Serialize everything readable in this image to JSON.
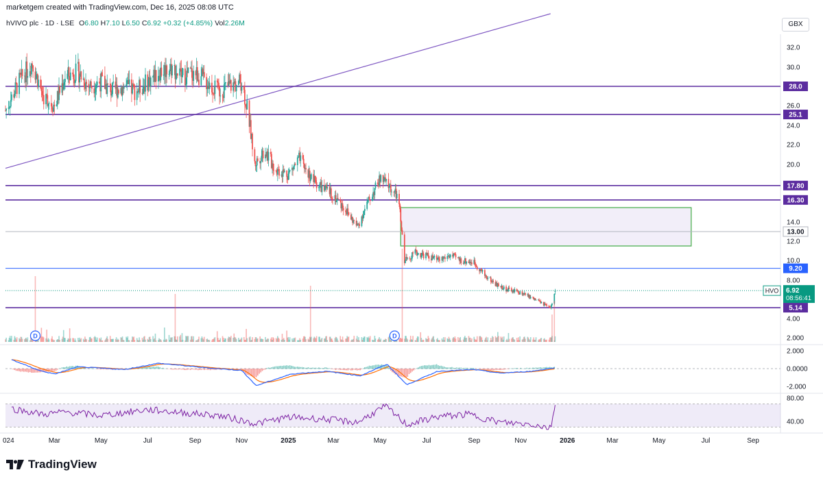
{
  "header": {
    "credit": "marketgem created with TradingView.com, Dec 16, 2025 08:08 UTC",
    "currency": "GBX"
  },
  "legend": {
    "symbol": "hVIVO plc · 1D · LSE",
    "open_label": "O",
    "open": "6.80",
    "high_label": "H",
    "high": "7.10",
    "low_label": "L",
    "low": "6.50",
    "close_label": "C",
    "close": "6.92",
    "change": "+0.32 (+4.85%)",
    "vol_label": "Vol",
    "volume": "2.26M"
  },
  "price_tag": {
    "ticker": "HVO",
    "price": "6.92",
    "countdown": "08:56:41"
  },
  "brand": {
    "name": "TradingView"
  },
  "colors": {
    "up": "#26a69a",
    "down": "#ef5350",
    "purple_line": "#5b2c9f",
    "blue_line": "#2962ff",
    "trendline": "#7e57c2",
    "box_border": "#4caf50",
    "box_fill": "#ede7f6",
    "rsi": "#7b1fa2",
    "macd": "#2962ff",
    "signal": "#ff6d00",
    "price_tag": "#089981"
  },
  "chart_data": [
    {
      "type": "candlestick",
      "title": "hVIVO plc · 1D · LSE",
      "ylabel": "GBX",
      "ylim": [
        1.8,
        33
      ],
      "y_ticks": [
        "32.0",
        "30.0",
        "26.0",
        "24.0",
        "22.0",
        "20.0",
        "14.0",
        "12.0",
        "10.0",
        "8.00",
        "4.00",
        "2.000"
      ],
      "x_ticks": [
        "024",
        "Mar",
        "May",
        "Jul",
        "Sep",
        "Nov",
        "2025",
        "Mar",
        "May",
        "Jul",
        "Sep",
        "Nov",
        "2026",
        "Mar",
        "May",
        "Jul",
        "Sep"
      ],
      "x_domain": [
        "2023-12-28",
        "2026-10-05"
      ],
      "last_bar_date": "2025-12-16",
      "ohlc_last": {
        "open": 6.8,
        "high": 7.1,
        "low": 6.5,
        "close": 6.92
      },
      "close_path": [
        {
          "date": "2023-12-28",
          "close": 25.5
        },
        {
          "date": "2024-01-15",
          "close": 28.5
        },
        {
          "date": "2024-02-01",
          "close": 30.5
        },
        {
          "date": "2024-02-15",
          "close": 27.0
        },
        {
          "date": "2024-03-01",
          "close": 26.0
        },
        {
          "date": "2024-03-15",
          "close": 29.0
        },
        {
          "date": "2024-04-01",
          "close": 29.5
        },
        {
          "date": "2024-04-15",
          "close": 28.0
        },
        {
          "date": "2024-05-01",
          "close": 28.5
        },
        {
          "date": "2024-05-15",
          "close": 27.5
        },
        {
          "date": "2024-06-01",
          "close": 28.0
        },
        {
          "date": "2024-06-15",
          "close": 27.5
        },
        {
          "date": "2024-07-01",
          "close": 28.5
        },
        {
          "date": "2024-07-15",
          "close": 29.5
        },
        {
          "date": "2024-08-01",
          "close": 30.0
        },
        {
          "date": "2024-08-15",
          "close": 29.0
        },
        {
          "date": "2024-09-01",
          "close": 29.5
        },
        {
          "date": "2024-09-15",
          "close": 28.5
        },
        {
          "date": "2024-10-01",
          "close": 27.5
        },
        {
          "date": "2024-10-15",
          "close": 28.0
        },
        {
          "date": "2024-11-01",
          "close": 28.5
        },
        {
          "date": "2024-11-10",
          "close": 25.0
        },
        {
          "date": "2024-11-18",
          "close": 20.0
        },
        {
          "date": "2024-12-01",
          "close": 21.5
        },
        {
          "date": "2024-12-15",
          "close": 19.5
        },
        {
          "date": "2025-01-01",
          "close": 19.0
        },
        {
          "date": "2025-01-15",
          "close": 20.5
        },
        {
          "date": "2025-02-01",
          "close": 18.5
        },
        {
          "date": "2025-02-15",
          "close": 17.5
        },
        {
          "date": "2025-03-01",
          "close": 16.8
        },
        {
          "date": "2025-03-15",
          "close": 15.5
        },
        {
          "date": "2025-04-01",
          "close": 13.5
        },
        {
          "date": "2025-04-15",
          "close": 16.0
        },
        {
          "date": "2025-05-01",
          "close": 18.5
        },
        {
          "date": "2025-05-10",
          "close": 18.0
        },
        {
          "date": "2025-05-25",
          "close": 16.5
        },
        {
          "date": "2025-06-02",
          "close": 10.0
        },
        {
          "date": "2025-06-15",
          "close": 10.8
        },
        {
          "date": "2025-07-01",
          "close": 10.5
        },
        {
          "date": "2025-07-15",
          "close": 10.0
        },
        {
          "date": "2025-08-01",
          "close": 10.5
        },
        {
          "date": "2025-08-15",
          "close": 10.0
        },
        {
          "date": "2025-09-01",
          "close": 9.8
        },
        {
          "date": "2025-09-15",
          "close": 8.5
        },
        {
          "date": "2025-10-01",
          "close": 7.5
        },
        {
          "date": "2025-10-15",
          "close": 7.0
        },
        {
          "date": "2025-11-01",
          "close": 6.7
        },
        {
          "date": "2025-11-15",
          "close": 6.2
        },
        {
          "date": "2025-12-01",
          "close": 5.5
        },
        {
          "date": "2025-12-10",
          "close": 5.0
        },
        {
          "date": "2025-12-16",
          "close": 6.92
        }
      ],
      "horizontal_lines": [
        {
          "value": 28.0,
          "label": "28.0",
          "style": "purple"
        },
        {
          "value": 25.1,
          "label": "25.1",
          "style": "purple"
        },
        {
          "value": 17.8,
          "label": "17.80",
          "style": "purple"
        },
        {
          "value": 16.3,
          "label": "16.30",
          "style": "purple"
        },
        {
          "value": 13.0,
          "label": "13.00",
          "style": "grey"
        },
        {
          "value": 9.2,
          "label": "9.20",
          "style": "blue"
        },
        {
          "value": 5.14,
          "label": "5.14",
          "style": "purple"
        }
      ],
      "zone": {
        "from": "2025-05-28",
        "to": "2026-06-12",
        "low": 11.5,
        "high": 15.5
      },
      "trendline": {
        "from": {
          "date": "2023-12-28",
          "value": 19.6
        },
        "to": {
          "date": "2025-12-10",
          "value": 33.0
        }
      },
      "dividend_markers": [
        "2024-02-05",
        "2025-05-20"
      ],
      "dividend_marker_label": "D"
    },
    {
      "type": "line",
      "title": "",
      "y_ticks": [
        "2.000",
        "0.0000",
        "-2.000"
      ],
      "ylim": [
        -2.6,
        2.6
      ],
      "series_note": "MACD line and signal line with histogram",
      "events": [
        {
          "date": "2024-01-05",
          "macd": 1.0
        },
        {
          "date": "2024-02-10",
          "macd": -0.2
        },
        {
          "date": "2024-03-01",
          "macd": -0.6
        },
        {
          "date": "2024-04-01",
          "macd": 0.2
        },
        {
          "date": "2024-06-01",
          "macd": -0.1
        },
        {
          "date": "2024-07-15",
          "macd": 0.6
        },
        {
          "date": "2024-09-15",
          "macd": 0.1
        },
        {
          "date": "2024-11-01",
          "macd": -0.2
        },
        {
          "date": "2024-11-20",
          "macd": -1.9
        },
        {
          "date": "2025-01-05",
          "macd": -0.6
        },
        {
          "date": "2025-02-20",
          "macd": -0.3
        },
        {
          "date": "2025-04-05",
          "macd": -0.8
        },
        {
          "date": "2025-05-10",
          "macd": 0.5
        },
        {
          "date": "2025-06-05",
          "macd": -1.8
        },
        {
          "date": "2025-07-15",
          "macd": -0.3
        },
        {
          "date": "2025-09-01",
          "macd": -0.1
        },
        {
          "date": "2025-10-05",
          "macd": -0.5
        },
        {
          "date": "2025-11-15",
          "macd": -0.3
        },
        {
          "date": "2025-12-16",
          "macd": 0.1
        }
      ]
    },
    {
      "type": "line",
      "title": "",
      "y_ticks": [
        "80.00",
        "40.00"
      ],
      "ylim": [
        22,
        86
      ],
      "band": [
        30,
        70
      ],
      "rsi": [
        {
          "date": "2024-01-05",
          "value": 62
        },
        {
          "date": "2024-02-15",
          "value": 52
        },
        {
          "date": "2024-03-15",
          "value": 56
        },
        {
          "date": "2024-05-01",
          "value": 50
        },
        {
          "date": "2024-07-01",
          "value": 60
        },
        {
          "date": "2024-08-15",
          "value": 55
        },
        {
          "date": "2024-10-01",
          "value": 50
        },
        {
          "date": "2024-11-20",
          "value": 36
        },
        {
          "date": "2025-01-01",
          "value": 47
        },
        {
          "date": "2025-02-15",
          "value": 44
        },
        {
          "date": "2025-04-01",
          "value": 38
        },
        {
          "date": "2025-05-08",
          "value": 66
        },
        {
          "date": "2025-06-05",
          "value": 34
        },
        {
          "date": "2025-07-15",
          "value": 48
        },
        {
          "date": "2025-08-25",
          "value": 52
        },
        {
          "date": "2025-10-05",
          "value": 38
        },
        {
          "date": "2025-11-15",
          "value": 35
        },
        {
          "date": "2025-12-10",
          "value": 28
        },
        {
          "date": "2025-12-16",
          "value": 68
        }
      ]
    }
  ]
}
